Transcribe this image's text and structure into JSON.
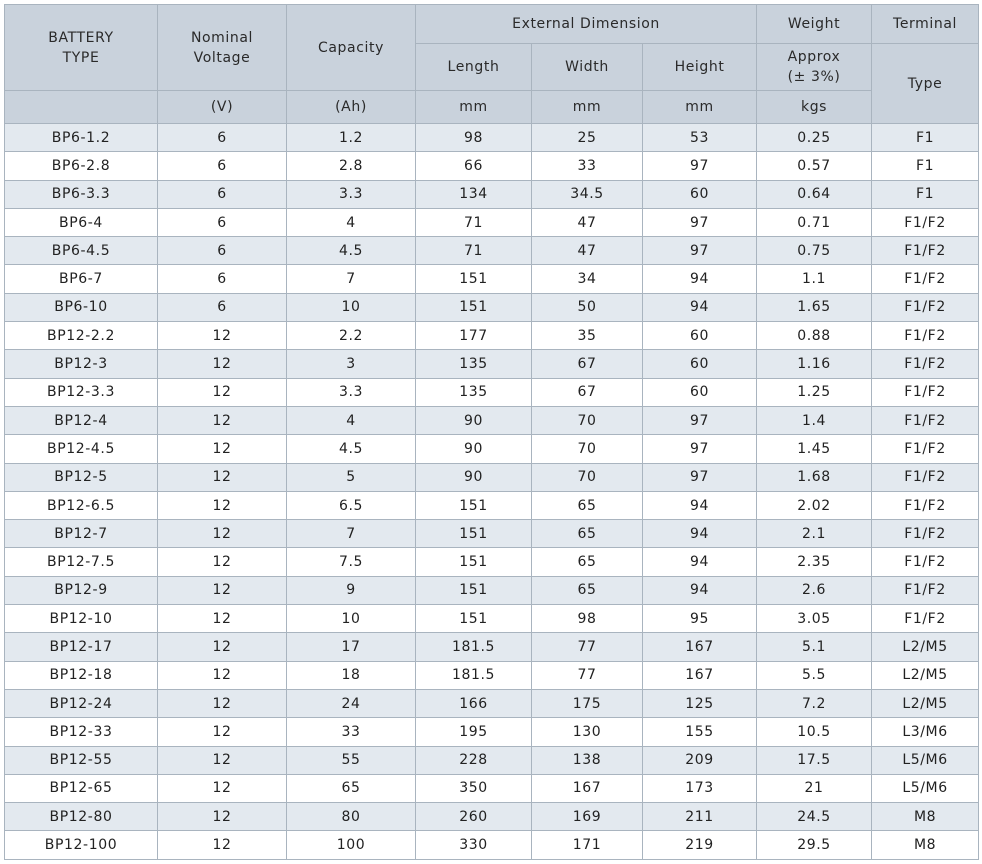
{
  "header": {
    "battery_type": "BATTERY\nTYPE",
    "battery_type_l1": "BATTERY",
    "battery_type_l2": "TYPE",
    "nominal_l1": "Nominal",
    "nominal_l2": "Voltage",
    "capacity": "Capacity",
    "external_dimension": "External Dimension",
    "weight": "Weight",
    "terminal": "Terminal",
    "length": "Length",
    "width": "Width",
    "height": "Height",
    "approx_l1": "Approx",
    "approx_l2": "(± 3%)",
    "type": "Type",
    "unit_v": "(V)",
    "unit_ah": "(Ah)",
    "unit_len": "mm",
    "unit_wid": "mm",
    "unit_hei": "mm",
    "unit_kgs": "kgs"
  },
  "rows": [
    [
      "BP6-1.2",
      "6",
      "1.2",
      "98",
      "25",
      "53",
      "0.25",
      "F1"
    ],
    [
      "BP6-2.8",
      "6",
      "2.8",
      "66",
      "33",
      "97",
      "0.57",
      "F1"
    ],
    [
      "BP6-3.3",
      "6",
      "3.3",
      "134",
      "34.5",
      "60",
      "0.64",
      "F1"
    ],
    [
      "BP6-4",
      "6",
      "4",
      "71",
      "47",
      "97",
      "0.71",
      "F1/F2"
    ],
    [
      "BP6-4.5",
      "6",
      "4.5",
      "71",
      "47",
      "97",
      "0.75",
      "F1/F2"
    ],
    [
      "BP6-7",
      "6",
      "7",
      "151",
      "34",
      "94",
      "1.1",
      "F1/F2"
    ],
    [
      "BP6-10",
      "6",
      "10",
      "151",
      "50",
      "94",
      "1.65",
      "F1/F2"
    ],
    [
      "BP12-2.2",
      "12",
      "2.2",
      "177",
      "35",
      "60",
      "0.88",
      "F1/F2"
    ],
    [
      "BP12-3",
      "12",
      "3",
      "135",
      "67",
      "60",
      "1.16",
      "F1/F2"
    ],
    [
      "BP12-3.3",
      "12",
      "3.3",
      "135",
      "67",
      "60",
      "1.25",
      "F1/F2"
    ],
    [
      "BP12-4",
      "12",
      "4",
      "90",
      "70",
      "97",
      "1.4",
      "F1/F2"
    ],
    [
      "BP12-4.5",
      "12",
      "4.5",
      "90",
      "70",
      "97",
      "1.45",
      "F1/F2"
    ],
    [
      "BP12-5",
      "12",
      "5",
      "90",
      "70",
      "97",
      "1.68",
      "F1/F2"
    ],
    [
      "BP12-6.5",
      "12",
      "6.5",
      "151",
      "65",
      "94",
      "2.02",
      "F1/F2"
    ],
    [
      "BP12-7",
      "12",
      "7",
      "151",
      "65",
      "94",
      "2.1",
      "F1/F2"
    ],
    [
      "BP12-7.5",
      "12",
      "7.5",
      "151",
      "65",
      "94",
      "2.35",
      "F1/F2"
    ],
    [
      "BP12-9",
      "12",
      "9",
      "151",
      "65",
      "94",
      "2.6",
      "F1/F2"
    ],
    [
      "BP12-10",
      "12",
      "10",
      "151",
      "98",
      "95",
      "3.05",
      "F1/F2"
    ],
    [
      "BP12-17",
      "12",
      "17",
      "181.5",
      "77",
      "167",
      "5.1",
      "L2/M5"
    ],
    [
      "BP12-18",
      "12",
      "18",
      "181.5",
      "77",
      "167",
      "5.5",
      "L2/M5"
    ],
    [
      "BP12-24",
      "12",
      "24",
      "166",
      "175",
      "125",
      "7.2",
      "L2/M5"
    ],
    [
      "BP12-33",
      "12",
      "33",
      "195",
      "130",
      "155",
      "10.5",
      "L3/M6"
    ],
    [
      "BP12-55",
      "12",
      "55",
      "228",
      "138",
      "209",
      "17.5",
      "L5/M6"
    ],
    [
      "BP12-65",
      "12",
      "65",
      "350",
      "167",
      "173",
      "21",
      "L5/M6"
    ],
    [
      "BP12-80",
      "12",
      "80",
      "260",
      "169",
      "211",
      "24.5",
      "M8"
    ],
    [
      "BP12-100",
      "12",
      "100",
      "330",
      "171",
      "219",
      "29.5",
      "M8"
    ]
  ],
  "colors": {
    "header_bg": "#c9d2dc",
    "stripe_bg": "#e3e9ef",
    "border": "#a9b4bf"
  }
}
